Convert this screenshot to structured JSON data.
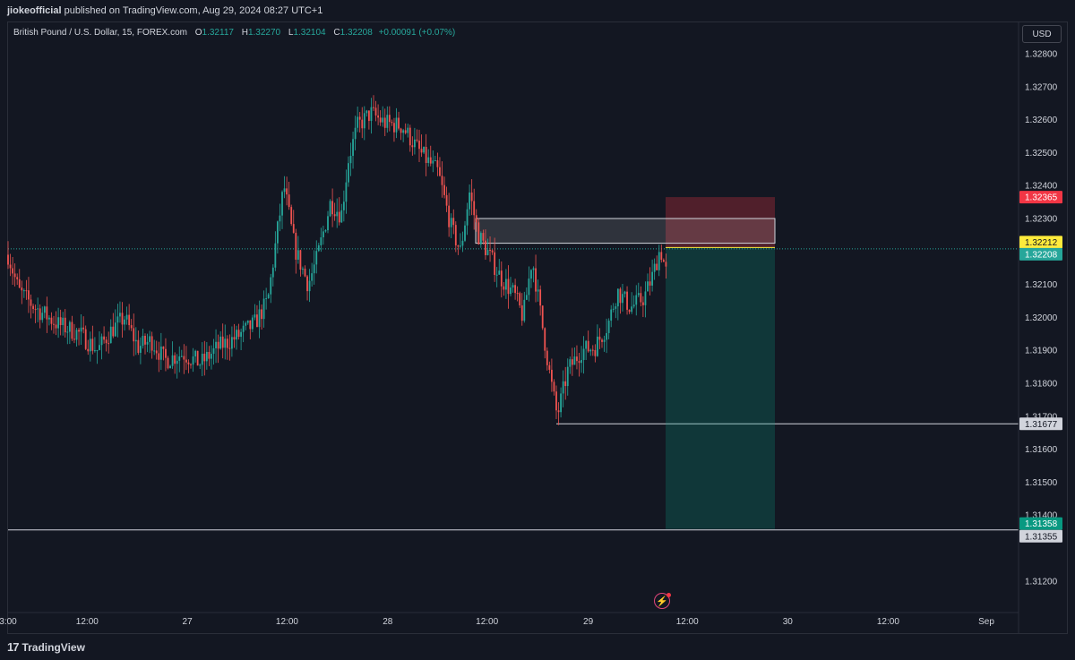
{
  "header": {
    "author": "jiokeofficial",
    "published_text": "published on TradingView.com, Aug 29, 2024 08:27 UTC+1"
  },
  "symbol": {
    "name": "British Pound / U.S. Dollar, 15, FOREX.com",
    "open_label": "O",
    "open": "1.32117",
    "high_label": "H",
    "high": "1.32270",
    "low_label": "L",
    "low": "1.32104",
    "close_label": "C",
    "close": "1.32208",
    "change": "+0.00091 (+0.07%)"
  },
  "currency_button": "USD",
  "price_axis": {
    "ticks": [
      "1.32800",
      "1.32700",
      "1.32600",
      "1.32500",
      "1.32400",
      "1.32300",
      "1.32100",
      "1.32000",
      "1.31900",
      "1.31800",
      "1.31700",
      "1.31600",
      "1.31500",
      "1.31400",
      "1.31200"
    ],
    "tags": [
      {
        "text": "1.32365",
        "color": "#f23645",
        "text_color": "#ffffff",
        "price": 1.32365
      },
      {
        "text": "1.32212",
        "color": "#ffeb3b",
        "text_color": "#131722",
        "price": 1.32212
      },
      {
        "text": "1.32208",
        "color": "#26a69a",
        "text_color": "#ffffff",
        "price": 1.32208
      },
      {
        "text": "1.31677",
        "color": "#d1d4dc",
        "text_color": "#131722",
        "price": 1.31677
      },
      {
        "text": "1.31358",
        "color": "#089981",
        "text_color": "#ffffff",
        "price": 1.31358
      },
      {
        "text": "1.31355",
        "color": "#d1d4dc",
        "text_color": "#131722",
        "price": 1.31355
      }
    ]
  },
  "time_axis": {
    "labels": [
      {
        "text": "3:00",
        "pos": 0.0
      },
      {
        "text": "12:00",
        "pos": 0.0783
      },
      {
        "text": "27",
        "pos": 0.1774
      },
      {
        "text": "12:00",
        "pos": 0.2761
      },
      {
        "text": "28",
        "pos": 0.3757
      },
      {
        "text": "12:00",
        "pos": 0.474
      },
      {
        "text": "29",
        "pos": 0.5741
      },
      {
        "text": "12:00",
        "pos": 0.6722
      },
      {
        "text": "30",
        "pos": 0.7715
      },
      {
        "text": "12:00",
        "pos": 0.8709
      },
      {
        "text": "Sep",
        "pos": 0.9681
      }
    ]
  },
  "chart_data": {
    "type": "candlestick",
    "symbol": "GBPUSD",
    "timeframe": "15",
    "ylim": [
      1.3113,
      1.3285
    ],
    "path_points": [
      [
        0,
        1.3219
      ],
      [
        12,
        1.3208
      ],
      [
        30,
        1.3203
      ],
      [
        55,
        1.3198
      ],
      [
        80,
        1.3195
      ],
      [
        100,
        1.319
      ],
      [
        115,
        1.3196
      ],
      [
        130,
        1.32
      ],
      [
        145,
        1.3191
      ],
      [
        160,
        1.3193
      ],
      [
        175,
        1.3187
      ],
      [
        195,
        1.3189
      ],
      [
        215,
        1.3186
      ],
      [
        235,
        1.3191
      ],
      [
        255,
        1.3194
      ],
      [
        275,
        1.3198
      ],
      [
        290,
        1.3205
      ],
      [
        300,
        1.3225
      ],
      [
        308,
        1.324
      ],
      [
        320,
        1.3221
      ],
      [
        335,
        1.321
      ],
      [
        345,
        1.3218
      ],
      [
        360,
        1.3235
      ],
      [
        372,
        1.3231
      ],
      [
        380,
        1.3248
      ],
      [
        390,
        1.3258
      ],
      [
        405,
        1.3262
      ],
      [
        420,
        1.3259
      ],
      [
        440,
        1.3258
      ],
      [
        460,
        1.325
      ],
      [
        480,
        1.3244
      ],
      [
        495,
        1.3227
      ],
      [
        505,
        1.322
      ],
      [
        515,
        1.3238
      ],
      [
        525,
        1.3225
      ],
      [
        535,
        1.322
      ],
      [
        550,
        1.3212
      ],
      [
        565,
        1.3207
      ],
      [
        575,
        1.32
      ],
      [
        585,
        1.3218
      ],
      [
        595,
        1.32
      ],
      [
        605,
        1.3182
      ],
      [
        613,
        1.317
      ],
      [
        625,
        1.3184
      ],
      [
        640,
        1.319
      ],
      [
        655,
        1.3191
      ],
      [
        670,
        1.3198
      ],
      [
        680,
        1.3208
      ],
      [
        695,
        1.3203
      ],
      [
        710,
        1.3206
      ],
      [
        720,
        1.3213
      ],
      [
        728,
        1.3221
      ],
      [
        736,
        1.3212
      ]
    ],
    "horizontal_lines": [
      {
        "price": 1.31677,
        "x_start": 612
      },
      {
        "price": 1.31355,
        "x_start": 0
      }
    ],
    "current_price_line": 1.32208,
    "zone_box": {
      "top": 1.323,
      "bottom": 1.32225,
      "x_start": 522,
      "x_end": 856
    },
    "position": {
      "type": "short",
      "entry": 1.32212,
      "stop": 1.32365,
      "target": 1.31358,
      "x_start": 734,
      "x_end": 856
    }
  },
  "colors": {
    "background": "#131722",
    "up": "#26a69a",
    "down": "#ef5350",
    "grid_border": "#2a2e39"
  },
  "footer": {
    "brand": "TradingView"
  }
}
